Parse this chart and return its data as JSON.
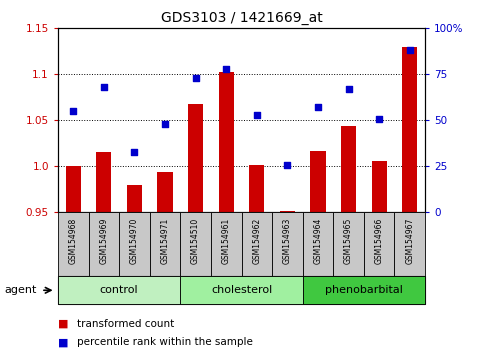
{
  "title": "GDS3103 / 1421669_at",
  "samples": [
    "GSM154968",
    "GSM154969",
    "GSM154970",
    "GSM154971",
    "GSM154510",
    "GSM154961",
    "GSM154962",
    "GSM154963",
    "GSM154964",
    "GSM154965",
    "GSM154966",
    "GSM154967"
  ],
  "bar_values": [
    1.0,
    1.016,
    0.98,
    0.994,
    1.068,
    1.103,
    1.002,
    0.952,
    1.017,
    1.044,
    1.006,
    1.13
  ],
  "dot_values": [
    55,
    68,
    33,
    48,
    73,
    78,
    53,
    26,
    57,
    67,
    51,
    88
  ],
  "groups": [
    {
      "label": "control",
      "start": 0,
      "end": 4,
      "color": "#c0f0c0"
    },
    {
      "label": "cholesterol",
      "start": 4,
      "end": 8,
      "color": "#a0f0a0"
    },
    {
      "label": "phenobarbital",
      "start": 8,
      "end": 12,
      "color": "#40c840"
    }
  ],
  "bar_color": "#cc0000",
  "dot_color": "#0000cc",
  "bar_baseline": 0.95,
  "left_ylim": [
    0.95,
    1.15
  ],
  "left_yticks": [
    0.95,
    1.0,
    1.05,
    1.1,
    1.15
  ],
  "right_ylim": [
    0,
    100
  ],
  "right_yticks": [
    0,
    25,
    50,
    75,
    100
  ],
  "right_yticklabels": [
    "0",
    "25",
    "50",
    "75",
    "100%"
  ],
  "grid_values": [
    1.0,
    1.05,
    1.1
  ],
  "plot_bg_color": "#ffffff",
  "sample_bg_color": "#c8c8c8",
  "legend": [
    {
      "color": "#cc0000",
      "label": "transformed count"
    },
    {
      "color": "#0000cc",
      "label": "percentile rank within the sample"
    }
  ]
}
